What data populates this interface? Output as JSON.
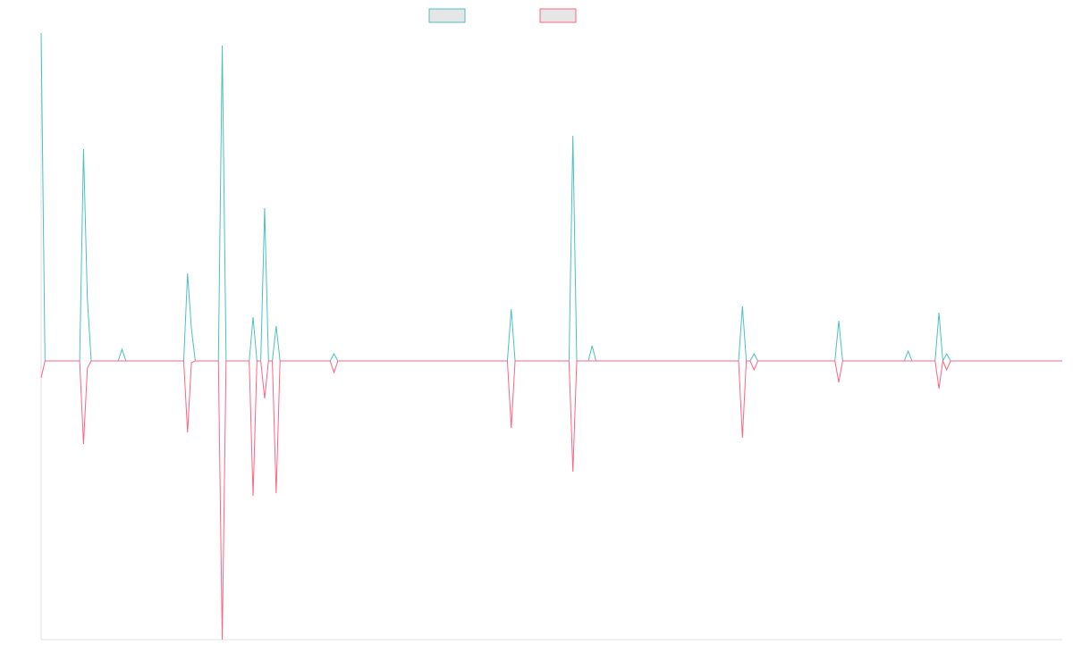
{
  "chart_data": {
    "type": "line",
    "x": [
      0,
      1,
      10,
      11,
      12,
      13,
      20,
      21,
      22,
      37,
      38,
      39,
      40,
      46,
      47,
      48,
      54,
      55,
      56,
      57,
      58,
      59,
      60,
      61,
      62,
      75,
      76,
      77,
      121,
      122,
      123,
      137,
      138,
      139,
      142,
      143,
      144,
      181,
      182,
      183,
      184,
      185,
      186,
      206,
      207,
      208,
      224,
      225,
      226,
      232,
      233,
      234,
      235,
      236,
      265
    ],
    "series": [
      {
        "color": "#4bc0c0",
        "values": [
          367,
          0,
          0,
          237,
          69,
          0,
          0,
          13,
          0,
          0,
          98,
          36,
          0,
          0,
          353,
          0,
          0,
          49,
          0,
          0,
          171,
          0,
          0,
          39,
          0,
          0,
          8,
          0,
          0,
          58,
          0,
          0,
          252,
          0,
          0,
          17,
          0,
          0,
          61,
          0,
          0,
          8,
          0,
          0,
          45,
          0,
          0,
          11,
          0,
          0,
          54,
          0,
          8,
          0,
          0
        ]
      },
      {
        "color": "#ff6384",
        "values": [
          -19,
          0,
          0,
          -93,
          -8,
          0,
          0,
          0,
          0,
          0,
          -80,
          -2,
          0,
          0,
          -312,
          0,
          0,
          -151,
          0,
          0,
          -42,
          0,
          0,
          -148,
          0,
          0,
          -13,
          0,
          0,
          -75,
          0,
          0,
          -124,
          0,
          0,
          0,
          0,
          0,
          -86,
          0,
          0,
          -10,
          0,
          0,
          -24,
          0,
          0,
          0,
          0,
          0,
          -31,
          0,
          -10,
          0,
          0
        ]
      }
    ],
    "xlim": [
      0,
      265
    ],
    "ylim": [
      -312,
      367
    ],
    "grid": false
  }
}
